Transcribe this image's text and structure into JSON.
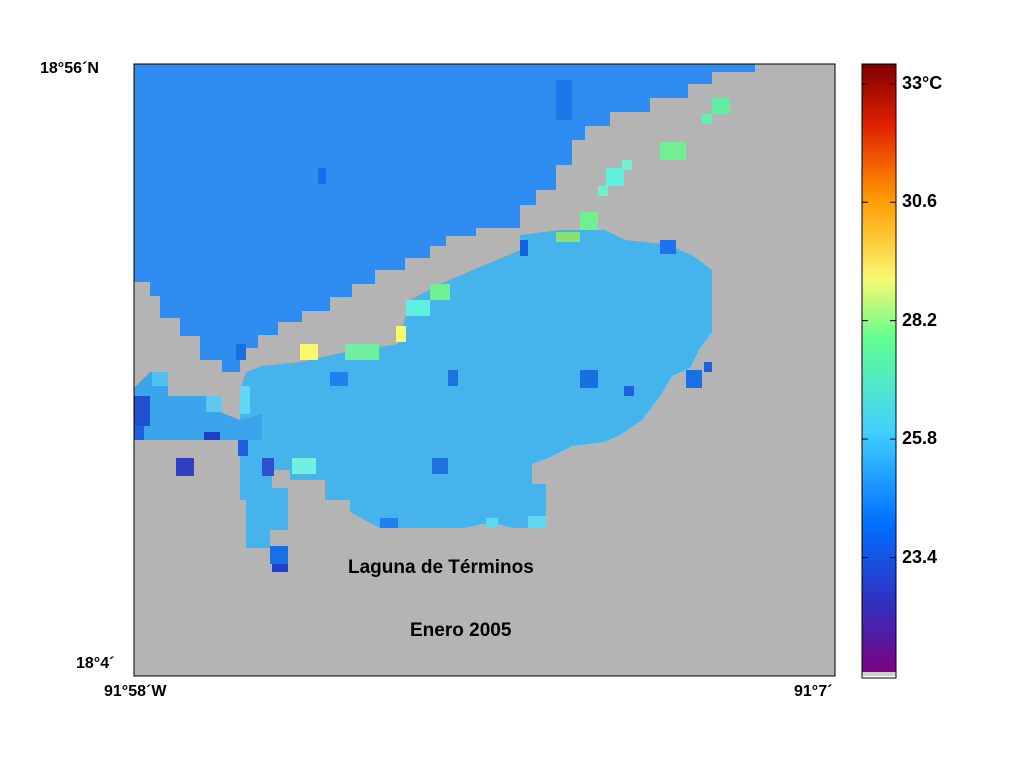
{
  "map": {
    "lat_top": "18°56´N",
    "lat_bottom": "18°4´",
    "lon_left": "91°58´W",
    "lon_right": "91°7´",
    "title": "Laguna de Términos",
    "subtitle": "Enero 2005",
    "land_color": "#b4b4b4",
    "frame_color": "#000000"
  },
  "colorbar": {
    "colormap": "jet",
    "min": 21.0,
    "max": 33.4,
    "tick_labels": [
      "33°C",
      "30.6",
      "28.2",
      "25.8",
      "23.4"
    ],
    "tick_values": [
      33.0,
      30.6,
      28.2,
      25.8,
      23.4
    ]
  }
}
